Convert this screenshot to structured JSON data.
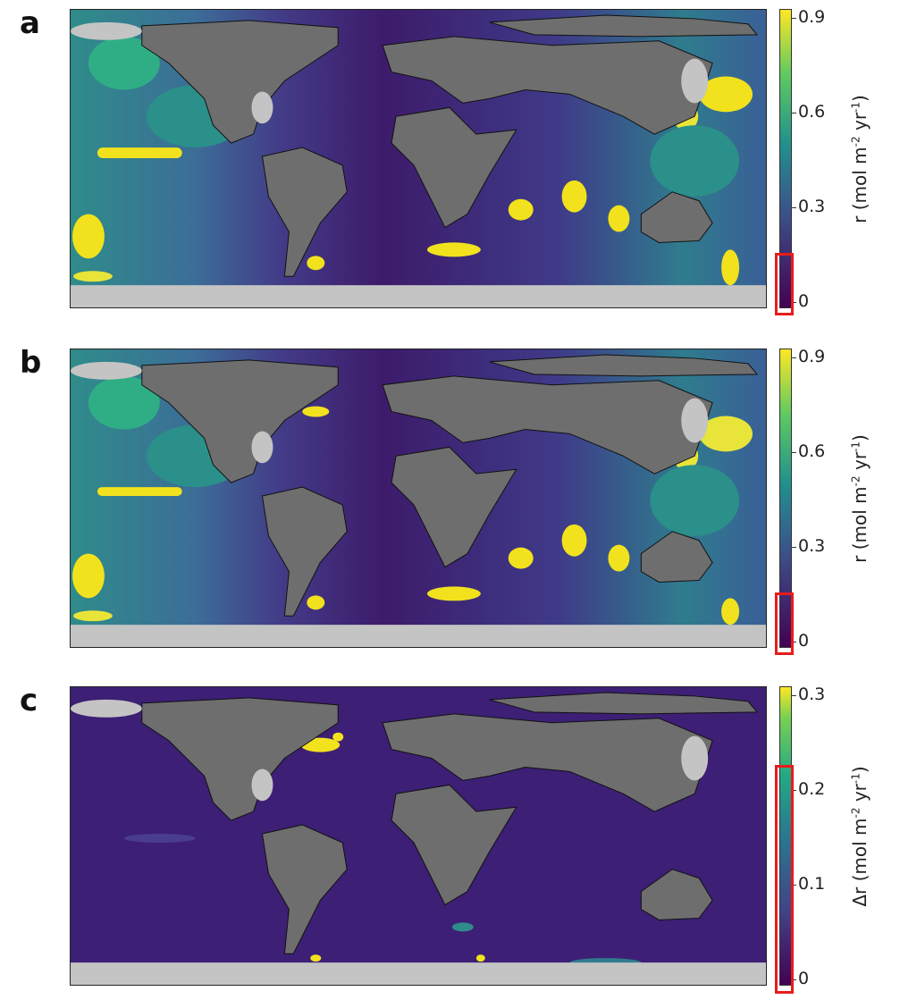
{
  "panels": [
    {
      "letter": "a",
      "colorbar": {
        "label_symbol": "r",
        "label_units": "(mol m",
        "exp1": "-2",
        "mid": " yr",
        "exp2": "-1",
        "close": ")",
        "ticks": [
          "0.9",
          "0.6",
          "0.3",
          "0"
        ],
        "range": [
          0,
          0.95
        ]
      }
    },
    {
      "letter": "b",
      "colorbar": {
        "label_symbol": "r",
        "label_units": "(mol m",
        "exp1": "-2",
        "mid": " yr",
        "exp2": "-1",
        "close": ")",
        "ticks": [
          "0.9",
          "0.6",
          "0.3",
          "0"
        ],
        "range": [
          0,
          0.95
        ]
      }
    },
    {
      "letter": "c",
      "colorbar": {
        "label_symbol": "Δr",
        "label_units": "(mol m",
        "exp1": "-2",
        "mid": " yr",
        "exp2": "-1",
        "close": ")",
        "ticks": [
          "0.3",
          "0.2",
          "0.1",
          "0"
        ],
        "range": [
          0,
          0.32
        ]
      }
    }
  ],
  "colors": {
    "land": "#6e6e6e",
    "ice": "#c4c4c4",
    "ocean_low": "#3b1d6e",
    "ocean_mid": "#2a7f8e",
    "ocean_high": "#f2e21d",
    "highlight": "#e81c1c"
  }
}
